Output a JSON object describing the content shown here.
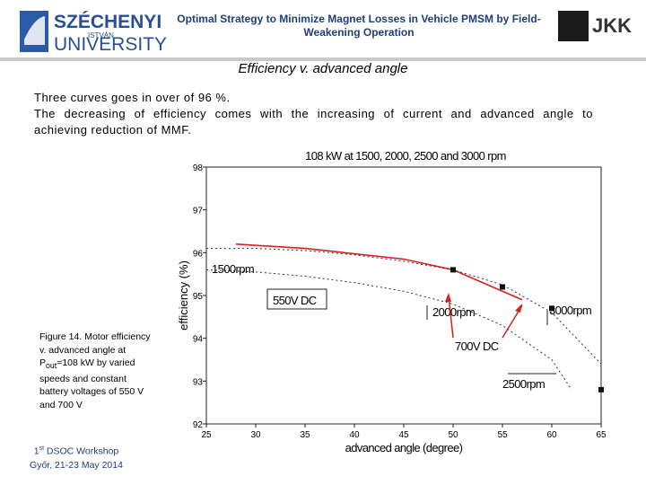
{
  "header": {
    "university_name_line1": "SZÉCHENYI",
    "university_name_line2": "ISTVÁN",
    "university_name_line3": "UNIVERSITY",
    "title": "Optimal Strategy to Minimize Magnet Losses in Vehicle PMSM by Field-Weakening Operation",
    "right_logo": "JKK"
  },
  "subtitle": "Efficiency v.  advanced  angle",
  "body": [
    "Three curves goes in over of 96 %.",
    "The decreasing of efficiency comes with the increasing of current and advanced angle to",
    "achieving reduction of MMF."
  ],
  "caption": {
    "before_subscript": "Figure 14. Motor efficiency v. advanced angle at P",
    "subscript": "out",
    "after_subscript": "=108 kW by varied speeds and constant battery voltages of 550 V and 700 V"
  },
  "footer": {
    "ordinal": "1",
    "ordinal_suffix": "st",
    "event": " DSOC Workshop",
    "place_date": "Győr, 21-23 May 2014"
  },
  "figure": {
    "chart": {
      "type": "line",
      "title": "108 kW at 1500, 2000, 2500 and 3000 rpm",
      "xlabel": "advanced angle (degree)",
      "ylabel": "efficiency (%)",
      "xlim": [
        25,
        65
      ],
      "xticks": [
        25,
        30,
        35,
        40,
        45,
        50,
        55,
        60,
        65
      ],
      "ylim": [
        92,
        98
      ],
      "yticks": [
        98,
        97,
        96,
        95,
        94,
        93,
        92
      ],
      "series": [
        {
          "color": "#d62020",
          "style": "solid",
          "x": [
            28,
            35,
            45,
            50,
            57
          ],
          "values": [
            96.2,
            96.1,
            95.85,
            95.6,
            94.9
          ]
        },
        {
          "color": "#333333",
          "style": "dotted",
          "x": [
            25,
            30,
            35,
            40,
            45,
            50,
            55,
            60,
            65
          ],
          "values": [
            96.1,
            96.1,
            96.05,
            95.95,
            95.8,
            95.6,
            95.25,
            94.6,
            93.4
          ]
        },
        {
          "color": "#333333",
          "style": "dotted",
          "x": [
            25,
            30,
            35,
            40,
            45,
            50,
            55,
            60,
            62
          ],
          "values": [
            95.6,
            95.55,
            95.45,
            95.3,
            95.1,
            94.8,
            94.3,
            93.5,
            92.8
          ]
        },
        {
          "color": "#111111",
          "style": "markers",
          "x": [
            50,
            55,
            60,
            65
          ],
          "values": [
            95.6,
            95.2,
            94.7,
            92.8
          ]
        }
      ],
      "annotations": [
        "1500rpm",
        "550V DC",
        "2000rpm",
        "3000rpm",
        "700V DC",
        "2500rpm"
      ]
    }
  }
}
